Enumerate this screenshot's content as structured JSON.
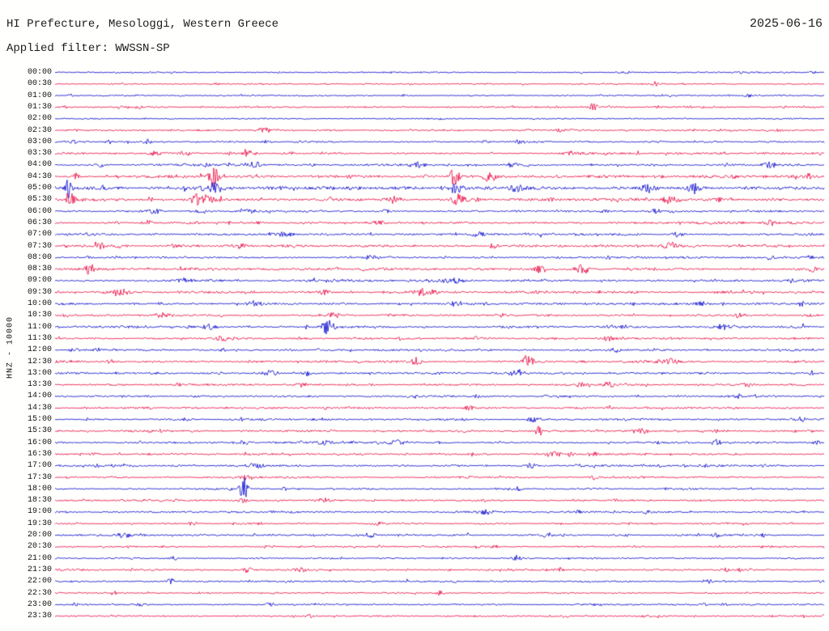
{
  "header": {
    "title": "HI Prefecture, Mesologgi, Western Greece",
    "date": "2025-06-16",
    "filter": "Applied filter: WWSSN-SP"
  },
  "y_axis_label": "HNZ - 10000",
  "colors": {
    "blue": "#0000cc",
    "red": "#e8043c",
    "text": "#1c1c1c",
    "background": "#fffffe"
  },
  "chart_data": {
    "type": "line",
    "subtype": "helicorder-seismogram",
    "station_region": "HI Prefecture, Mesologgi, Western Greece",
    "date": "2025-06-16",
    "filter": "WWSSN-SP",
    "channel_scale_label": "HNZ - 10000",
    "row_duration_minutes": 30,
    "rows_total": 48,
    "trace_color_alternation": [
      "blue",
      "red"
    ],
    "rows": [
      {
        "t": "00:00",
        "c": "blue",
        "amp": 0.7,
        "events": [
          [
            0.985,
            3,
            0.004
          ]
        ]
      },
      {
        "t": "00:30",
        "c": "red",
        "amp": 0.7,
        "events": [
          [
            0.21,
            2,
            0.003
          ],
          [
            0.61,
            1.8,
            0.003
          ],
          [
            0.78,
            2.5,
            0.004
          ]
        ]
      },
      {
        "t": "01:00",
        "c": "blue",
        "amp": 0.7,
        "events": [
          [
            0.02,
            2,
            0.003
          ],
          [
            0.9,
            1.5,
            0.004
          ]
        ]
      },
      {
        "t": "01:30",
        "c": "red",
        "amp": 0.8,
        "events": [
          [
            0.7,
            5,
            0.005
          ],
          [
            0.95,
            2,
            0.003
          ]
        ]
      },
      {
        "t": "02:00",
        "c": "blue",
        "amp": 0.7,
        "events": []
      },
      {
        "t": "02:30",
        "c": "red",
        "amp": 0.9,
        "events": [
          [
            0.27,
            2,
            0.01
          ],
          [
            0.94,
            2.5,
            0.004
          ]
        ]
      },
      {
        "t": "03:00",
        "c": "blue",
        "amp": 0.9,
        "events": [
          [
            0.07,
            2.5,
            0.005
          ],
          [
            0.12,
            3,
            0.005
          ],
          [
            0.56,
            2,
            0.004
          ]
        ]
      },
      {
        "t": "03:30",
        "c": "red",
        "amp": 1.1,
        "events": [
          [
            0.13,
            3,
            0.006
          ],
          [
            0.25,
            2.5,
            0.01
          ],
          [
            0.67,
            2,
            0.01
          ]
        ]
      },
      {
        "t": "04:00",
        "c": "blue",
        "amp": 1.2,
        "events": [
          [
            0.06,
            3,
            0.004
          ],
          [
            0.26,
            4,
            0.006
          ],
          [
            0.47,
            3,
            0.008
          ],
          [
            0.93,
            3.5,
            0.01
          ]
        ]
      },
      {
        "t": "04:30",
        "c": "red",
        "amp": 1.4,
        "events": [
          [
            0.027,
            5,
            0.004
          ],
          [
            0.205,
            12,
            0.008
          ],
          [
            0.52,
            12,
            0.006
          ],
          [
            0.565,
            6,
            0.01
          ]
        ]
      },
      {
        "t": "05:00",
        "c": "blue",
        "amp": 1.7,
        "events": [
          [
            0.018,
            12,
            0.004
          ],
          [
            0.205,
            7,
            0.012
          ],
          [
            0.52,
            6,
            0.01
          ],
          [
            0.6,
            4,
            0.01
          ],
          [
            0.77,
            6,
            0.006
          ],
          [
            0.83,
            5,
            0.008
          ]
        ]
      },
      {
        "t": "05:30",
        "c": "red",
        "amp": 1.5,
        "events": [
          [
            0.02,
            7,
            0.005
          ],
          [
            0.19,
            8,
            0.012
          ],
          [
            0.44,
            4,
            0.01
          ],
          [
            0.525,
            7,
            0.008
          ],
          [
            0.8,
            5,
            0.01
          ]
        ]
      },
      {
        "t": "06:00",
        "c": "blue",
        "amp": 1.1,
        "events": [
          [
            0.13,
            3,
            0.008
          ],
          [
            0.25,
            2.5,
            0.01
          ],
          [
            0.78,
            3,
            0.006
          ]
        ]
      },
      {
        "t": "06:30",
        "c": "red",
        "amp": 1.1,
        "events": [
          [
            0.12,
            3.5,
            0.006
          ],
          [
            0.42,
            2.5,
            0.01
          ],
          [
            0.93,
            3.5,
            0.008
          ]
        ]
      },
      {
        "t": "07:00",
        "c": "blue",
        "amp": 1.1,
        "events": [
          [
            0.3,
            3,
            0.01
          ],
          [
            0.55,
            2.5,
            0.01
          ],
          [
            0.81,
            3,
            0.008
          ]
        ]
      },
      {
        "t": "07:30",
        "c": "red",
        "amp": 1.2,
        "events": [
          [
            0.06,
            3,
            0.008
          ],
          [
            0.57,
            3,
            0.006
          ],
          [
            0.8,
            4,
            0.008
          ]
        ]
      },
      {
        "t": "08:00",
        "c": "blue",
        "amp": 1.0,
        "events": [
          [
            0.41,
            2.5,
            0.01
          ],
          [
            0.93,
            3,
            0.006
          ]
        ]
      },
      {
        "t": "08:30",
        "c": "red",
        "amp": 1.2,
        "events": [
          [
            0.045,
            6,
            0.006
          ],
          [
            0.63,
            4,
            0.006
          ],
          [
            0.685,
            7,
            0.009
          ],
          [
            0.985,
            4,
            0.004
          ]
        ]
      },
      {
        "t": "09:00",
        "c": "blue",
        "amp": 1.2,
        "events": [
          [
            0.17,
            3,
            0.01
          ],
          [
            0.52,
            3,
            0.012
          ],
          [
            0.96,
            3,
            0.006
          ]
        ]
      },
      {
        "t": "09:30",
        "c": "red",
        "amp": 1.2,
        "events": [
          [
            0.085,
            4,
            0.012
          ],
          [
            0.35,
            4,
            0.005
          ],
          [
            0.48,
            4,
            0.012
          ]
        ]
      },
      {
        "t": "10:00",
        "c": "blue",
        "amp": 1.1,
        "events": [
          [
            0.26,
            2.5,
            0.01
          ],
          [
            0.52,
            2.5,
            0.008
          ],
          [
            0.84,
            3,
            0.008
          ],
          [
            0.97,
            3,
            0.004
          ]
        ]
      },
      {
        "t": "10:30",
        "c": "red",
        "amp": 1.1,
        "events": [
          [
            0.14,
            3,
            0.01
          ],
          [
            0.36,
            3,
            0.006
          ],
          [
            0.89,
            3,
            0.008
          ]
        ]
      },
      {
        "t": "11:00",
        "c": "blue",
        "amp": 1.2,
        "events": [
          [
            0.355,
            12,
            0.007
          ],
          [
            0.2,
            3,
            0.008
          ],
          [
            0.87,
            3.5,
            0.01
          ],
          [
            0.975,
            4,
            0.005
          ]
        ]
      },
      {
        "t": "11:30",
        "c": "red",
        "amp": 1.1,
        "events": [
          [
            0.22,
            3.5,
            0.01
          ],
          [
            0.72,
            3,
            0.008
          ]
        ]
      },
      {
        "t": "12:00",
        "c": "blue",
        "amp": 1.1,
        "events": [
          [
            0.025,
            3,
            0.005
          ],
          [
            0.73,
            2.5,
            0.01
          ]
        ]
      },
      {
        "t": "12:30",
        "c": "red",
        "amp": 1.2,
        "events": [
          [
            0.47,
            4,
            0.006
          ],
          [
            0.615,
            10,
            0.006
          ],
          [
            0.8,
            3,
            0.008
          ]
        ]
      },
      {
        "t": "13:00",
        "c": "blue",
        "amp": 1.1,
        "events": [
          [
            0.28,
            3,
            0.008
          ],
          [
            0.33,
            3.5,
            0.006
          ],
          [
            0.6,
            3,
            0.01
          ]
        ]
      },
      {
        "t": "13:30",
        "c": "red",
        "amp": 1.0,
        "events": [
          [
            0.32,
            3,
            0.006
          ],
          [
            0.72,
            3,
            0.008
          ],
          [
            0.9,
            3,
            0.006
          ]
        ]
      },
      {
        "t": "14:00",
        "c": "blue",
        "amp": 0.95,
        "events": [
          [
            0.89,
            3,
            0.006
          ]
        ]
      },
      {
        "t": "14:30",
        "c": "red",
        "amp": 0.95,
        "events": [
          [
            0.54,
            2.5,
            0.008
          ],
          [
            0.72,
            2.5,
            0.006
          ]
        ]
      },
      {
        "t": "15:00",
        "c": "blue",
        "amp": 0.95,
        "events": [
          [
            0.62,
            2.5,
            0.008
          ],
          [
            0.97,
            3,
            0.005
          ]
        ]
      },
      {
        "t": "15:30",
        "c": "red",
        "amp": 1.0,
        "events": [
          [
            0.63,
            3.5,
            0.005
          ],
          [
            0.765,
            4,
            0.006
          ]
        ]
      },
      {
        "t": "16:00",
        "c": "blue",
        "amp": 1.0,
        "events": [
          [
            0.35,
            2.5,
            0.01
          ],
          [
            0.44,
            2.5,
            0.008
          ],
          [
            0.86,
            3,
            0.006
          ],
          [
            0.99,
            3,
            0.004
          ]
        ]
      },
      {
        "t": "16:30",
        "c": "red",
        "amp": 1.0,
        "events": [
          [
            0.65,
            3,
            0.008
          ],
          [
            0.7,
            3,
            0.006
          ]
        ]
      },
      {
        "t": "17:00",
        "c": "blue",
        "amp": 1.0,
        "events": [
          [
            0.26,
            3,
            0.01
          ],
          [
            0.62,
            3,
            0.008
          ]
        ]
      },
      {
        "t": "17:30",
        "c": "red",
        "amp": 0.95,
        "events": [
          [
            0.25,
            2.5,
            0.008
          ],
          [
            0.7,
            3,
            0.006
          ]
        ]
      },
      {
        "t": "18:00",
        "c": "blue",
        "amp": 1.0,
        "events": [
          [
            0.245,
            16,
            0.005
          ],
          [
            0.6,
            2.5,
            0.008
          ]
        ]
      },
      {
        "t": "18:30",
        "c": "red",
        "amp": 0.95,
        "events": [
          [
            0.245,
            3,
            0.006
          ],
          [
            0.35,
            2.5,
            0.008
          ]
        ]
      },
      {
        "t": "19:00",
        "c": "blue",
        "amp": 0.95,
        "events": [
          [
            0.56,
            2.5,
            0.008
          ],
          [
            0.77,
            2.5,
            0.006
          ]
        ]
      },
      {
        "t": "19:30",
        "c": "red",
        "amp": 0.85,
        "events": [
          [
            0.42,
            2,
            0.008
          ]
        ]
      },
      {
        "t": "20:00",
        "c": "blue",
        "amp": 0.95,
        "events": [
          [
            0.09,
            3,
            0.008
          ],
          [
            0.41,
            2.5,
            0.006
          ],
          [
            0.64,
            3,
            0.006
          ],
          [
            0.86,
            2.5,
            0.006
          ]
        ]
      },
      {
        "t": "20:30",
        "c": "red",
        "amp": 0.85,
        "events": [
          [
            0.57,
            2,
            0.008
          ]
        ]
      },
      {
        "t": "21:00",
        "c": "blue",
        "amp": 0.85,
        "events": [
          [
            0.155,
            2.5,
            0.006
          ],
          [
            0.6,
            2.5,
            0.006
          ]
        ]
      },
      {
        "t": "21:30",
        "c": "red",
        "amp": 0.95,
        "events": [
          [
            0.25,
            3,
            0.005
          ],
          [
            0.32,
            3.5,
            0.005
          ],
          [
            0.655,
            3,
            0.006
          ]
        ]
      },
      {
        "t": "22:00",
        "c": "blue",
        "amp": 0.85,
        "events": [
          [
            0.15,
            3,
            0.005
          ],
          [
            0.85,
            2.5,
            0.006
          ]
        ]
      },
      {
        "t": "22:30",
        "c": "red",
        "amp": 0.8,
        "events": [
          [
            0.5,
            3.5,
            0.004
          ]
        ]
      },
      {
        "t": "23:00",
        "c": "blue",
        "amp": 0.8,
        "events": [
          [
            0.28,
            2.5,
            0.005
          ]
        ]
      },
      {
        "t": "23:30",
        "c": "red",
        "amp": 0.8,
        "events": [
          [
            0.33,
            2,
            0.006
          ]
        ]
      }
    ]
  }
}
